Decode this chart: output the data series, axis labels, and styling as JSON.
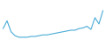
{
  "values": [
    22,
    32,
    18,
    13,
    11,
    11,
    11,
    12,
    12,
    13,
    14,
    14,
    15,
    16,
    17,
    18,
    19,
    20,
    20,
    22,
    23,
    25,
    21,
    36,
    28,
    45
  ],
  "line_color": "#4bacd6",
  "background_color": "#ffffff",
  "linewidth": 0.8,
  "ylim_min": 8,
  "ylim_max": 58
}
